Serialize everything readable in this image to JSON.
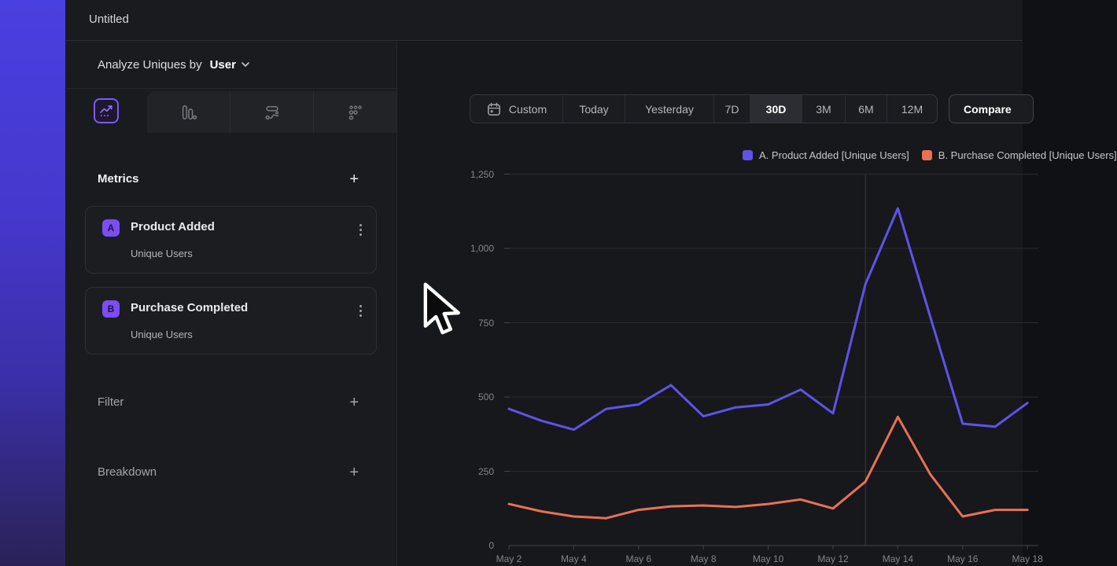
{
  "window": {
    "title": "Untitled"
  },
  "colors": {
    "accent_purple": "#7a4ef2",
    "selected_tab_border": "#7c5bf5",
    "nav_gradient_top": "#4a3fe0",
    "nav_gradient_bottom": "#2a2257",
    "panel_bg": "#1a1b1f",
    "main_bg": "#17181c"
  },
  "panel": {
    "analyze": {
      "label": "Analyze Uniques by",
      "value": "User"
    },
    "tabs": [
      {
        "name": "line-chart",
        "selected": true
      },
      {
        "name": "bar-chart",
        "selected": false
      },
      {
        "name": "flow",
        "selected": false
      },
      {
        "name": "dots-grid",
        "selected": false
      }
    ],
    "metrics": {
      "heading": "Metrics",
      "add_label": "+",
      "items": [
        {
          "badge": "A",
          "title": "Product Added",
          "subtitle": "Unique Users"
        },
        {
          "badge": "B",
          "title": "Purchase Completed",
          "subtitle": "Unique Users"
        }
      ]
    },
    "sections": [
      {
        "label": "Filter",
        "add_label": "+"
      },
      {
        "label": "Breakdown",
        "add_label": "+"
      }
    ]
  },
  "toolbar": {
    "ranges": [
      "Custom",
      "Today",
      "Yesterday",
      "7D",
      "30D",
      "3M",
      "6M",
      "12M"
    ],
    "selected": "30D",
    "compare_label": "Compare"
  },
  "chart_data": {
    "type": "line",
    "title": "",
    "xlabel": "",
    "ylabel": "",
    "ylim": [
      0,
      1250
    ],
    "grid": true,
    "legend_position": "top-right",
    "x": [
      "May 2",
      "May 3",
      "May 4",
      "May 5",
      "May 6",
      "May 7",
      "May 8",
      "May 9",
      "May 10",
      "May 11",
      "May 12",
      "May 13",
      "May 14",
      "May 15",
      "May 16",
      "May 17",
      "May 18"
    ],
    "series": [
      {
        "name": "A. Product Added [Unique Users]",
        "color": "#5f53e8",
        "values": [
          460,
          420,
          390,
          460,
          475,
          540,
          435,
          465,
          475,
          525,
          445,
          880,
          1135,
          770,
          410,
          400,
          480
        ]
      },
      {
        "name": "B. Purchase Completed [Unique Users]",
        "color": "#e87156",
        "values": [
          140,
          115,
          98,
          92,
          120,
          132,
          135,
          130,
          140,
          155,
          125,
          215,
          433,
          240,
          98,
          120,
          120
        ]
      }
    ],
    "y_tick_values": [
      0,
      250,
      500,
      750,
      1000,
      1250
    ],
    "y_tick_labels": [
      "0",
      "250",
      "500",
      "750",
      "1,000",
      "1,250"
    ],
    "x_tick_labels": [
      "May 2",
      "May 4",
      "May 6",
      "May 8",
      "May 10",
      "May 12",
      "May 14",
      "May 16",
      "May 18"
    ],
    "marker_x_label": "May 13"
  }
}
